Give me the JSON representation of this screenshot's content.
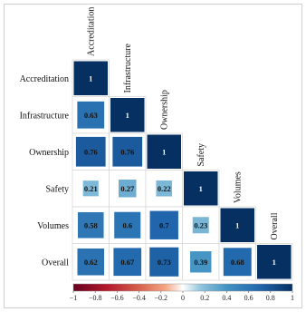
{
  "chart_data": {
    "type": "heatmap",
    "title": "",
    "variables": [
      "Accreditation",
      "Infrastructure",
      "Ownership",
      "Safety",
      "Volumes",
      "Overall"
    ],
    "correlations": [
      [
        1
      ],
      [
        0.63,
        1
      ],
      [
        0.76,
        0.76,
        1
      ],
      [
        0.21,
        0.27,
        0.22,
        1
      ],
      [
        0.58,
        0.6,
        0.7,
        0.23,
        1
      ],
      [
        0.62,
        0.67,
        0.73,
        0.39,
        0.68,
        1
      ]
    ],
    "colorbar": {
      "range": [
        -1,
        1
      ],
      "ticks": [
        "−1",
        "−0.8",
        "−0.6",
        "−0.4",
        "−0.2",
        "0",
        "0.2",
        "0.4",
        "0.6",
        "0.8",
        "1"
      ],
      "low_color": "#b2182b",
      "mid_color": "#ffffff",
      "high_color": "#2166ac"
    },
    "layout": "lower-triangular",
    "cell_shape": "square sized by |r|",
    "grid": true
  }
}
